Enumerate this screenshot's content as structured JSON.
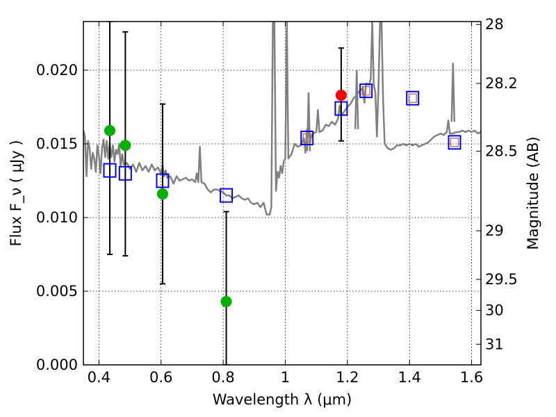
{
  "chart_data": {
    "type": "scatter",
    "xlabel": "Wavelength  λ (μm)",
    "ylabel": "Flux  F_ν  ( μJy )",
    "ylabel_right": "Magnitude (AB)",
    "xlim": [
      0.35,
      1.63
    ],
    "ylim": [
      0.0,
      0.0233
    ],
    "grid": true,
    "x_ticks": [
      {
        "value": 0.4,
        "label": "0.4"
      },
      {
        "value": 0.6,
        "label": "0.6"
      },
      {
        "value": 0.8,
        "label": "0.8"
      },
      {
        "value": 1.0,
        "label": "1"
      },
      {
        "value": 1.2,
        "label": "1.2"
      },
      {
        "value": 1.4,
        "label": "1.4"
      },
      {
        "value": 1.6,
        "label": "1.6"
      }
    ],
    "y_ticks": [
      {
        "value": 0.0,
        "label": "0.000"
      },
      {
        "value": 0.005,
        "label": "0.005"
      },
      {
        "value": 0.01,
        "label": "0.010"
      },
      {
        "value": 0.015,
        "label": "0.015"
      },
      {
        "value": 0.02,
        "label": "0.020"
      }
    ],
    "mag_ticks": [
      {
        "value": 0.0231,
        "label": "28"
      },
      {
        "value": 0.0191,
        "label": "28.2"
      },
      {
        "value": 0.0145,
        "label": "28.5"
      },
      {
        "value": 0.0091,
        "label": "29"
      },
      {
        "value": 0.0058,
        "label": "29.5"
      },
      {
        "value": 0.0037,
        "label": "30"
      },
      {
        "value": 0.0014,
        "label": "31"
      }
    ],
    "series": [
      {
        "name": "Model SED",
        "kind": "line",
        "color": "#808080",
        "points": [
          [
            0.35,
            0.0159
          ],
          [
            0.355,
            0.0155
          ],
          [
            0.36,
            0.0128
          ],
          [
            0.365,
            0.0152
          ],
          [
            0.37,
            0.0147
          ],
          [
            0.375,
            0.0133
          ],
          [
            0.38,
            0.0144
          ],
          [
            0.385,
            0.014
          ],
          [
            0.39,
            0.0131
          ],
          [
            0.395,
            0.0149
          ],
          [
            0.4,
            0.0142
          ],
          [
            0.405,
            0.013
          ],
          [
            0.41,
            0.0147
          ],
          [
            0.415,
            0.0153
          ],
          [
            0.42,
            0.0141
          ],
          [
            0.425,
            0.0152
          ],
          [
            0.43,
            0.014
          ],
          [
            0.435,
            0.015
          ],
          [
            0.44,
            0.0141
          ],
          [
            0.445,
            0.0149
          ],
          [
            0.45,
            0.0138
          ],
          [
            0.455,
            0.0146
          ],
          [
            0.46,
            0.0143
          ],
          [
            0.465,
            0.015
          ],
          [
            0.47,
            0.0135
          ],
          [
            0.475,
            0.0143
          ],
          [
            0.48,
            0.0136
          ],
          [
            0.49,
            0.0137
          ],
          [
            0.5,
            0.0133
          ],
          [
            0.51,
            0.0136
          ],
          [
            0.52,
            0.0131
          ],
          [
            0.53,
            0.0137
          ],
          [
            0.54,
            0.0132
          ],
          [
            0.55,
            0.0135
          ],
          [
            0.56,
            0.0131
          ],
          [
            0.57,
            0.0136
          ],
          [
            0.58,
            0.0132
          ],
          [
            0.59,
            0.0134
          ],
          [
            0.6,
            0.013
          ],
          [
            0.605,
            0.0135
          ],
          [
            0.61,
            0.0128
          ],
          [
            0.615,
            0.0132
          ],
          [
            0.62,
            0.0127
          ],
          [
            0.63,
            0.0128
          ],
          [
            0.64,
            0.0123
          ],
          [
            0.65,
            0.0128
          ],
          [
            0.66,
            0.0125
          ],
          [
            0.67,
            0.0126
          ],
          [
            0.68,
            0.0127
          ],
          [
            0.69,
            0.0125
          ],
          [
            0.7,
            0.0126
          ],
          [
            0.71,
            0.0124
          ],
          [
            0.715,
            0.013
          ],
          [
            0.72,
            0.0124
          ],
          [
            0.725,
            0.0148
          ],
          [
            0.73,
            0.0124
          ],
          [
            0.74,
            0.0123
          ],
          [
            0.75,
            0.0119
          ],
          [
            0.76,
            0.0117
          ],
          [
            0.77,
            0.0119
          ],
          [
            0.78,
            0.0119
          ],
          [
            0.79,
            0.0118
          ],
          [
            0.8,
            0.0117
          ],
          [
            0.81,
            0.0115
          ],
          [
            0.82,
            0.0115
          ],
          [
            0.83,
            0.0113
          ],
          [
            0.84,
            0.0114
          ],
          [
            0.85,
            0.0115
          ],
          [
            0.86,
            0.0113
          ],
          [
            0.87,
            0.0112
          ],
          [
            0.88,
            0.0113
          ],
          [
            0.89,
            0.011
          ],
          [
            0.9,
            0.0109
          ],
          [
            0.91,
            0.011
          ],
          [
            0.92,
            0.0107
          ],
          [
            0.93,
            0.011
          ],
          [
            0.94,
            0.0102
          ],
          [
            0.95,
            0.0102
          ],
          [
            0.955,
            0.0107
          ],
          [
            0.96,
            0.0233
          ],
          [
            0.965,
            0.0233
          ],
          [
            0.97,
            0.0118
          ],
          [
            0.975,
            0.0131
          ],
          [
            0.98,
            0.0127
          ],
          [
            0.985,
            0.0135
          ],
          [
            0.99,
            0.013
          ],
          [
            0.995,
            0.0138
          ],
          [
            1.0,
            0.014
          ],
          [
            1.005,
            0.0233
          ],
          [
            1.01,
            0.014
          ],
          [
            1.02,
            0.0143
          ],
          [
            1.03,
            0.015
          ],
          [
            1.04,
            0.0148
          ],
          [
            1.05,
            0.0149
          ],
          [
            1.06,
            0.0154
          ],
          [
            1.065,
            0.0144
          ],
          [
            1.07,
            0.016
          ],
          [
            1.08,
            0.0153
          ],
          [
            1.09,
            0.0157
          ],
          [
            1.1,
            0.0158
          ],
          [
            1.105,
            0.0173
          ],
          [
            1.11,
            0.0158
          ],
          [
            1.12,
            0.0159
          ],
          [
            1.13,
            0.0163
          ],
          [
            1.14,
            0.0162
          ],
          [
            1.15,
            0.0165
          ],
          [
            1.16,
            0.0163
          ],
          [
            1.17,
            0.0167
          ],
          [
            1.175,
            0.0176
          ],
          [
            1.18,
            0.0169
          ],
          [
            1.19,
            0.0172
          ],
          [
            1.2,
            0.0175
          ],
          [
            1.21,
            0.0177
          ],
          [
            1.22,
            0.0181
          ],
          [
            1.23,
            0.0183
          ],
          [
            1.24,
            0.0186
          ],
          [
            1.25,
            0.0188
          ],
          [
            1.255,
            0.0178
          ],
          [
            1.26,
            0.0191
          ],
          [
            1.27,
            0.019
          ],
          [
            1.275,
            0.0194
          ],
          [
            1.28,
            0.0233
          ],
          [
            1.285,
            0.019
          ],
          [
            1.29,
            0.0185
          ],
          [
            1.295,
            0.0155
          ],
          [
            1.3,
            0.0187
          ],
          [
            1.305,
            0.0233
          ],
          [
            1.31,
            0.0233
          ],
          [
            1.315,
            0.018
          ],
          [
            1.32,
            0.015
          ],
          [
            1.33,
            0.0147
          ],
          [
            1.34,
            0.0146
          ],
          [
            1.35,
            0.0147
          ],
          [
            1.36,
            0.0149
          ],
          [
            1.37,
            0.0149
          ],
          [
            1.38,
            0.015
          ],
          [
            1.39,
            0.0149
          ],
          [
            1.4,
            0.015
          ],
          [
            1.41,
            0.0149
          ],
          [
            1.42,
            0.015
          ],
          [
            1.43,
            0.0148
          ],
          [
            1.44,
            0.0149
          ],
          [
            1.45,
            0.015
          ],
          [
            1.46,
            0.0151
          ],
          [
            1.47,
            0.0153
          ],
          [
            1.48,
            0.0155
          ],
          [
            1.49,
            0.0156
          ],
          [
            1.5,
            0.0157
          ],
          [
            1.51,
            0.0156
          ],
          [
            1.52,
            0.0158
          ],
          [
            1.525,
            0.0166
          ],
          [
            1.53,
            0.0157
          ],
          [
            1.54,
            0.0157
          ],
          [
            1.55,
            0.0158
          ],
          [
            1.56,
            0.0158
          ],
          [
            1.57,
            0.0159
          ],
          [
            1.58,
            0.0158
          ],
          [
            1.59,
            0.0159
          ],
          [
            1.6,
            0.0158
          ],
          [
            1.61,
            0.0159
          ],
          [
            1.62,
            0.0157
          ],
          [
            1.63,
            0.0158
          ]
        ],
        "spikes": [
          {
            "x": 1.075,
            "y": 0.0185
          },
          {
            "x": 1.23,
            "y": 0.02
          },
          {
            "x": 1.54,
            "y": 0.0205
          }
        ]
      },
      {
        "name": "Optical photometry",
        "kind": "scatter",
        "marker": "circle",
        "color": "#00b000",
        "points": [
          {
            "x": 0.435,
            "y": 0.0159,
            "err_low": 0.0075,
            "err_high": 0.0233
          },
          {
            "x": 0.485,
            "y": 0.0149,
            "err_low": 0.0074,
            "err_high": 0.0226
          },
          {
            "x": 0.605,
            "y": 0.0116,
            "err_low": 0.0055,
            "err_high": 0.0177
          },
          {
            "x": 0.81,
            "y": 0.0043,
            "err_low": 0.0,
            "err_high": 0.0104
          }
        ]
      },
      {
        "name": "NIR detection",
        "kind": "scatter",
        "marker": "circle",
        "color": "#ff0000",
        "points": [
          {
            "x": 1.18,
            "y": 0.0183,
            "err_low": 0.0152,
            "err_high": 0.0215
          }
        ]
      },
      {
        "name": "Model bandpass flux",
        "kind": "scatter",
        "marker": "open-square",
        "color": "#0000ff",
        "points": [
          {
            "x": 0.435,
            "y": 0.0132
          },
          {
            "x": 0.485,
            "y": 0.013
          },
          {
            "x": 0.605,
            "y": 0.0125
          },
          {
            "x": 0.81,
            "y": 0.0115
          },
          {
            "x": 1.07,
            "y": 0.0154
          },
          {
            "x": 1.18,
            "y": 0.0174
          },
          {
            "x": 1.26,
            "y": 0.0186
          },
          {
            "x": 1.41,
            "y": 0.0181
          },
          {
            "x": 1.545,
            "y": 0.0151
          }
        ]
      },
      {
        "name": "NIR bandpass marker",
        "kind": "scatter",
        "marker": "small-open-square",
        "color": "#c06060",
        "points": [
          {
            "x": 1.07,
            "y": 0.0154
          },
          {
            "x": 1.26,
            "y": 0.0186
          },
          {
            "x": 1.41,
            "y": 0.0181
          },
          {
            "x": 1.545,
            "y": 0.0151
          }
        ]
      }
    ]
  }
}
